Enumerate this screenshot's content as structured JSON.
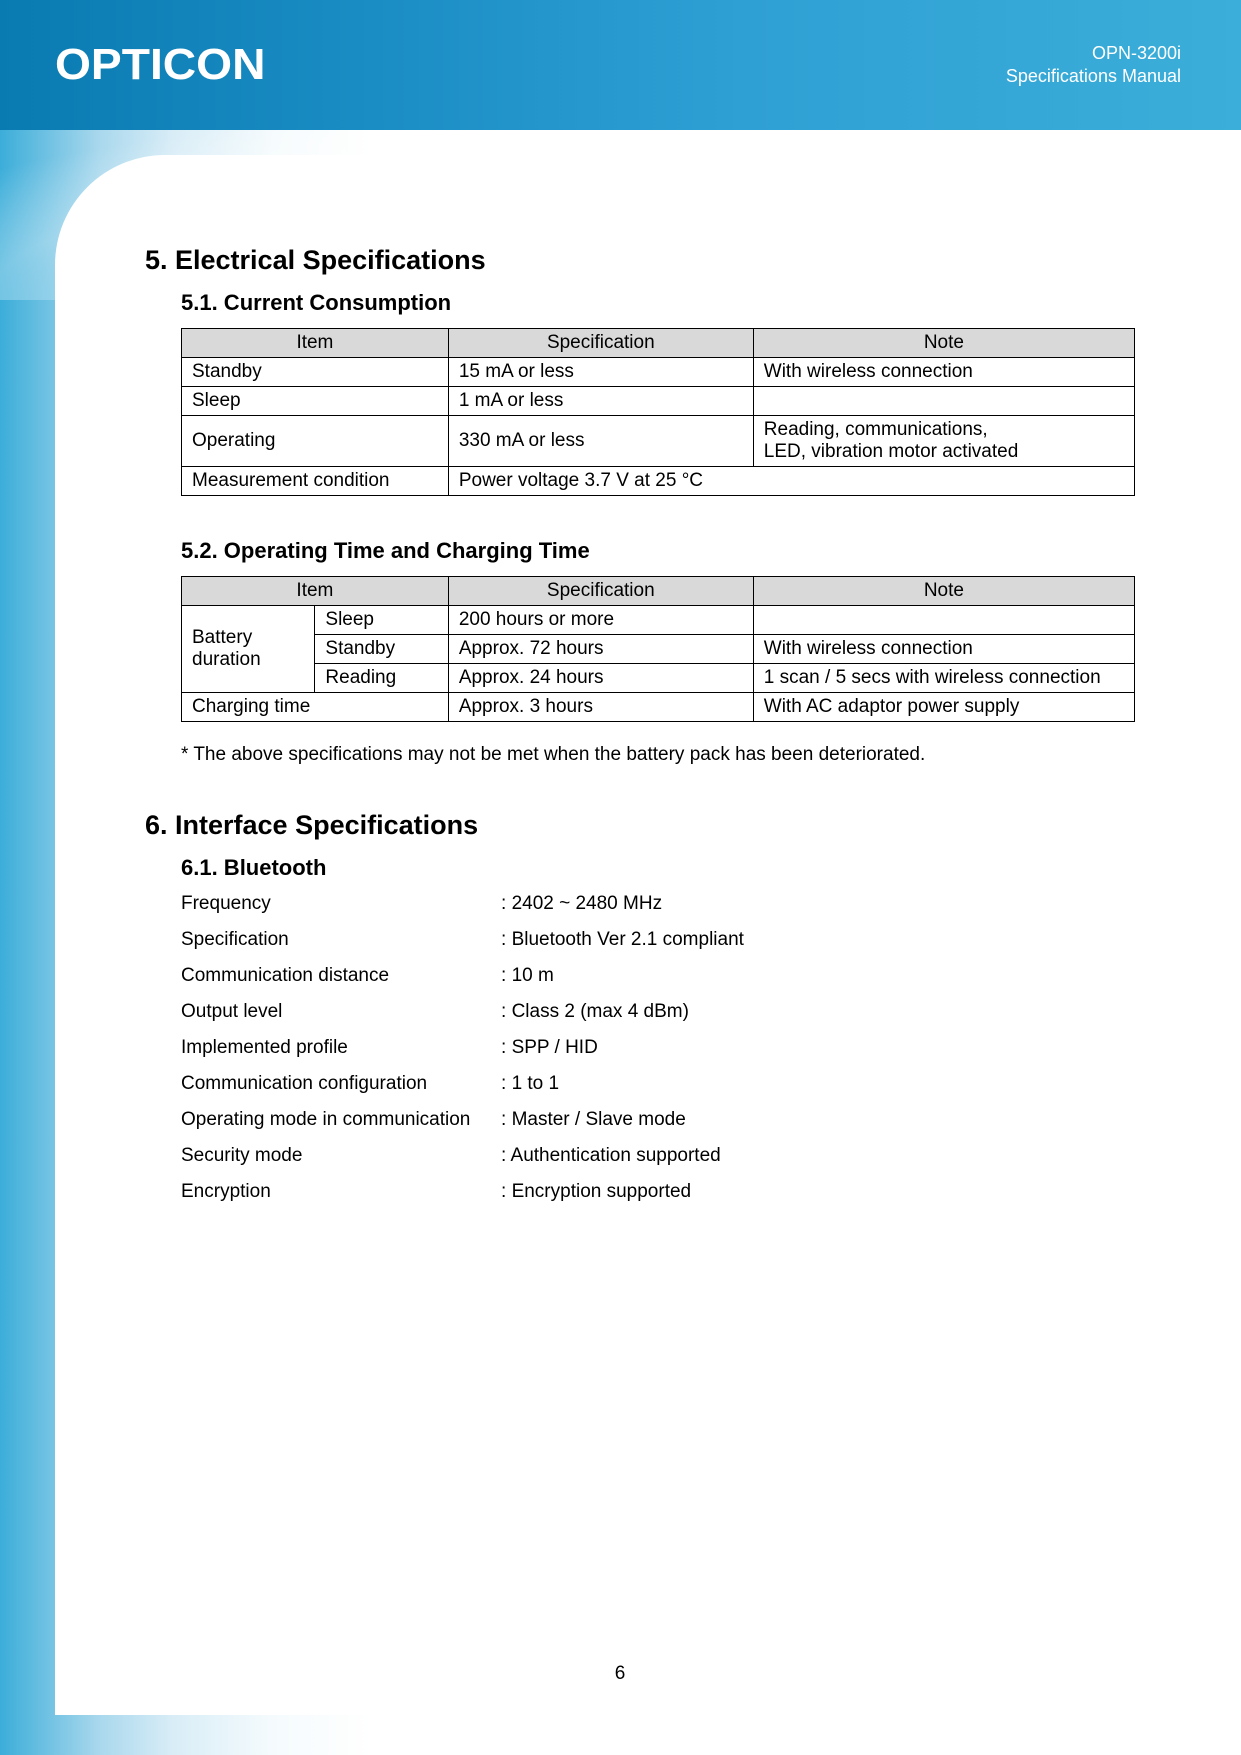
{
  "header": {
    "brand": "OPTICON",
    "product": "OPN-3200i",
    "doc_title": "Specifications Manual"
  },
  "section5": {
    "heading": "5. Electrical Specifications",
    "sub1": {
      "heading": "5.1. Current Consumption",
      "columns": [
        "Item",
        "Specification",
        "Note"
      ],
      "rows": [
        {
          "item": "Standby",
          "spec": "15 mA or less",
          "note": "With wireless connection"
        },
        {
          "item": "Sleep",
          "spec": "1 mA or less",
          "note": ""
        },
        {
          "item": "Operating",
          "spec": "330 mA or less",
          "note": "Reading, communications,\nLED, vibration motor activated"
        },
        {
          "item": "Measurement condition",
          "spec_note_merged": "Power voltage 3.7 V at 25 °C"
        }
      ],
      "col_widths": [
        "28%",
        "32%",
        "40%"
      ]
    },
    "sub2": {
      "heading": "5.2. Operating Time and Charging Time",
      "columns": [
        "Item",
        "Specification",
        "Note"
      ],
      "battery_label": "Battery\nduration",
      "battery_rows": [
        {
          "mode": "Sleep",
          "spec": "200 hours or more",
          "note": ""
        },
        {
          "mode": "Standby",
          "spec": "Approx. 72 hours",
          "note": "With wireless connection"
        },
        {
          "mode": "Reading",
          "spec": "Approx. 24 hours",
          "note": "1 scan / 5 secs with wireless connection"
        }
      ],
      "charging_row": {
        "item": "Charging time",
        "spec": "Approx. 3 hours",
        "note": "With AC adaptor power supply"
      },
      "col_widths": [
        "14%",
        "14%",
        "32%",
        "40%"
      ],
      "footnote": "* The above specifications may not be met when the battery pack has been deteriorated."
    }
  },
  "section6": {
    "heading": "6. Interface Specifications",
    "sub1": {
      "heading": "6.1. Bluetooth",
      "items": [
        {
          "k": "Frequency",
          "v": "2402 ~ 2480 MHz"
        },
        {
          "k": "Specification",
          "v": "Bluetooth Ver 2.1 compliant"
        },
        {
          "k": "Communication distance",
          "v": "10 m"
        },
        {
          "k": "Output level",
          "v": "Class 2 (max 4 dBm)"
        },
        {
          "k": "Implemented profile",
          "v": "SPP / HID"
        },
        {
          "k": "Communication configuration",
          "v": "1 to 1"
        },
        {
          "k": "Operating mode in communication",
          "v": "Master / Slave mode"
        },
        {
          "k": "Security mode",
          "v": "Authentication supported"
        },
        {
          "k": "Encryption",
          "v": "Encryption supported"
        }
      ]
    }
  },
  "page_number": "6",
  "colors": {
    "header_bg_start": "#0a7bb1",
    "header_bg_end": "#3baed9",
    "table_header_bg": "#d9d9d9",
    "border": "#000000",
    "text": "#000000",
    "header_text": "#ffffff",
    "page_bg": "#ffffff"
  },
  "typography": {
    "base_font": "Arial",
    "section_heading_pt": 20,
    "subsection_heading_pt": 16,
    "body_pt": 14
  }
}
